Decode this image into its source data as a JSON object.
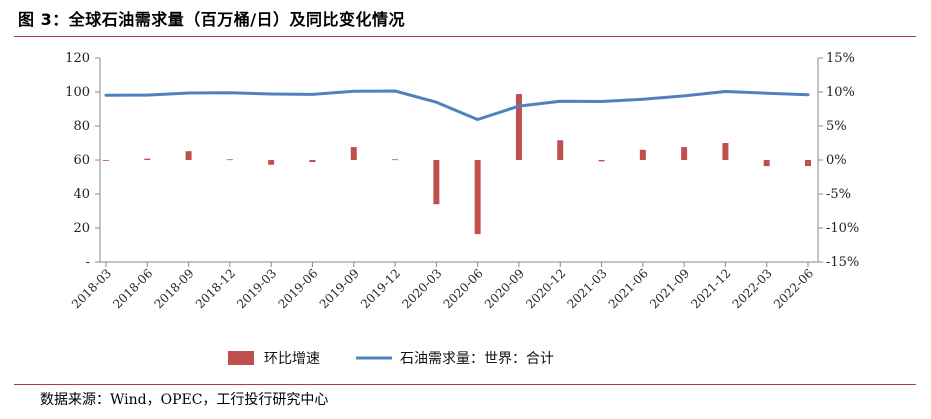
{
  "title": "图 3：全球石油需求量（百万桶/日）及同比变化情况",
  "source": "数据来源：Wind，OPEC，工行投行研究中心",
  "chart_data": {
    "type": "bar+line",
    "categories": [
      "2018-03",
      "2018-06",
      "2018-09",
      "2018-12",
      "2019-03",
      "2019-06",
      "2019-09",
      "2019-12",
      "2020-03",
      "2020-06",
      "2020-09",
      "2020-12",
      "2021-03",
      "2021-06",
      "2021-09",
      "2021-12",
      "2022-03",
      "2022-06"
    ],
    "x_tick_labels": [
      "2018-03",
      "2018-06",
      "2018-09",
      "2018-12",
      "2019-03",
      "2019-06",
      "2019-09",
      "2019-12",
      "2020-03",
      "2020-06",
      "2020-09",
      "2020-12",
      "2021-03",
      "2021-06",
      "2021-09",
      "2021-12",
      "2022-03",
      "2022-06"
    ],
    "series": [
      {
        "name": "环比增速",
        "type": "bar",
        "axis": "right",
        "color": "#c0504d",
        "values": [
          0.0,
          0.2,
          1.3,
          0.1,
          -0.7,
          -0.3,
          1.9,
          0.1,
          -6.5,
          -10.9,
          9.7,
          2.9,
          -0.2,
          1.5,
          1.9,
          2.5,
          -0.9,
          -0.9
        ]
      },
      {
        "name": "石油需求量：世界：合计",
        "type": "line",
        "axis": "left",
        "color": "#4f81bd",
        "values": [
          98.1,
          98.2,
          99.4,
          99.5,
          98.8,
          98.6,
          100.5,
          100.6,
          94.0,
          83.8,
          91.7,
          94.5,
          94.4,
          95.7,
          97.7,
          100.3,
          99.3,
          98.4
        ]
      }
    ],
    "y_left": {
      "min": 0,
      "max": 120,
      "ticks": [
        "-",
        "20",
        "40",
        "60",
        "80",
        "100",
        "120"
      ]
    },
    "y_right": {
      "min": -15,
      "max": 15,
      "ticks": [
        "-15%",
        "-10%",
        "-5%",
        "0%",
        "5%",
        "10%",
        "15%"
      ]
    },
    "legend_position": "bottom",
    "grid": false
  }
}
